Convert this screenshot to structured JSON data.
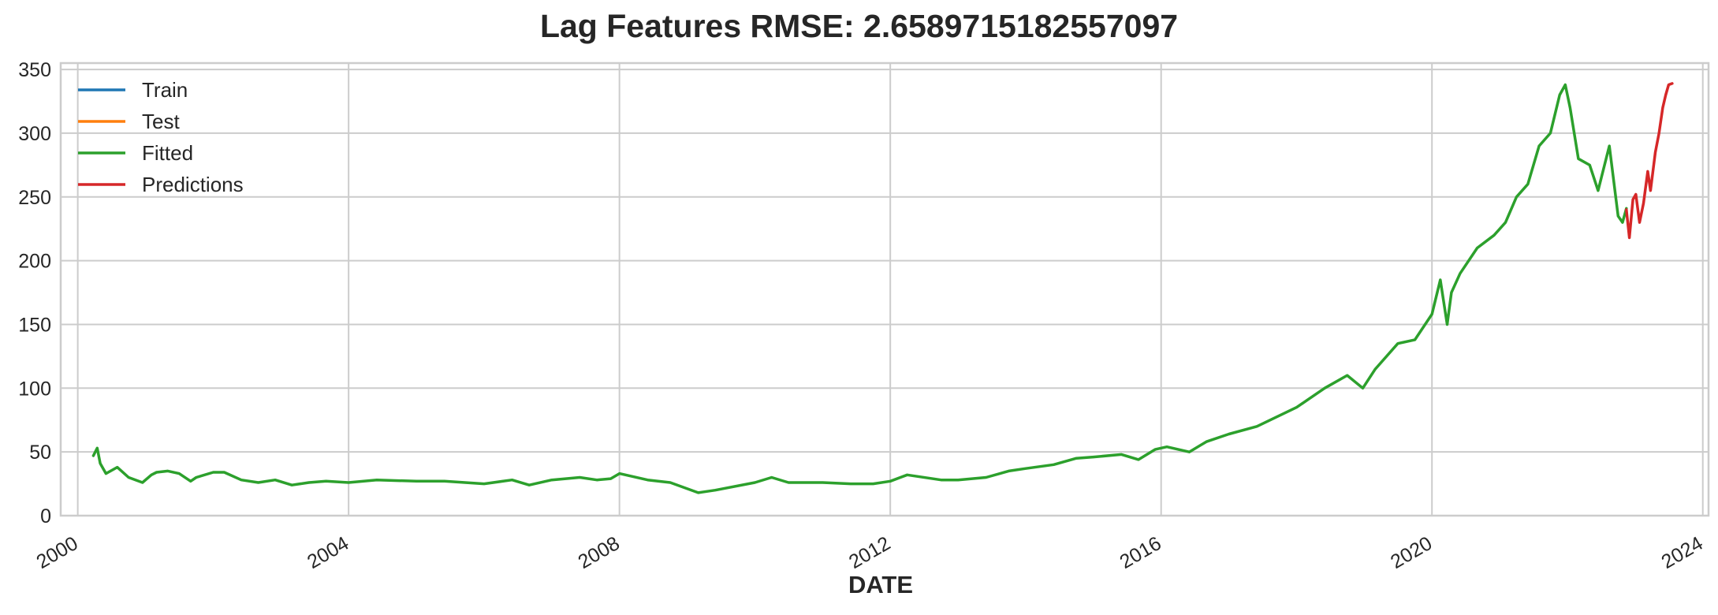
{
  "chart_data": {
    "type": "line",
    "title": "Lag Features RMSE: 2.6589715182557097",
    "xlabel": "DATE",
    "ylabel": "",
    "x_ticks": [
      "2000",
      "2004",
      "2008",
      "2012",
      "2016",
      "2020",
      "2024"
    ],
    "y_ticks": [
      "0",
      "50",
      "100",
      "150",
      "200",
      "250",
      "300",
      "350"
    ],
    "xlim": [
      "1999-10-01",
      "2024-02-01"
    ],
    "ylim": [
      0,
      355
    ],
    "grid": true,
    "legend_position": "upper-left",
    "series": [
      {
        "name": "Train",
        "color": "#1f77b4",
        "x": [],
        "y": []
      },
      {
        "name": "Test",
        "color": "#ff7f0e",
        "x": [],
        "y": []
      },
      {
        "name": "Fitted",
        "color": "#2ca02c",
        "x": [
          "2000-03-25",
          "2000-04-15",
          "2000-05-01",
          "2000-06-01",
          "2000-08-01",
          "2000-10-01",
          "2000-12-15",
          "2001-02-01",
          "2001-03-01",
          "2001-05-01",
          "2001-07-01",
          "2001-09-01",
          "2001-10-01",
          "2002-01-01",
          "2002-03-01",
          "2002-06-01",
          "2002-09-01",
          "2002-12-01",
          "2003-03-01",
          "2003-06-01",
          "2003-09-01",
          "2004-01-01",
          "2004-06-01",
          "2005-01-01",
          "2005-06-01",
          "2006-01-01",
          "2006-06-01",
          "2006-09-01",
          "2007-01-01",
          "2007-06-01",
          "2007-09-01",
          "2007-11-15",
          "2008-01-01",
          "2008-06-01",
          "2008-10-01",
          "2009-03-01",
          "2009-06-01",
          "2010-01-01",
          "2010-04-01",
          "2010-07-01",
          "2011-01-01",
          "2011-06-01",
          "2011-10-01",
          "2012-01-01",
          "2012-04-01",
          "2012-10-01",
          "2013-01-01",
          "2013-06-01",
          "2013-10-01",
          "2014-01-01",
          "2014-06-01",
          "2014-10-01",
          "2015-01-01",
          "2015-06-01",
          "2015-09-01",
          "2015-12-01",
          "2016-02-01",
          "2016-06-01",
          "2016-09-01",
          "2017-01-01",
          "2017-06-01",
          "2018-01-01",
          "2018-06-01",
          "2018-10-01",
          "2018-12-24",
          "2019-03-01",
          "2019-07-01",
          "2019-10-01",
          "2020-01-01",
          "2020-02-15",
          "2020-03-23",
          "2020-04-15",
          "2020-06-01",
          "2020-09-01",
          "2020-12-01",
          "2021-02-01",
          "2021-04-01",
          "2021-06-01",
          "2021-08-01",
          "2021-10-01",
          "2021-11-20",
          "2021-12-20",
          "2022-01-15",
          "2022-03-01",
          "2022-05-01",
          "2022-06-15",
          "2022-08-15",
          "2022-10-01",
          "2022-10-25",
          "2022-11-15"
        ],
        "y": [
          47,
          53,
          41,
          33,
          38,
          30,
          26,
          32,
          34,
          35,
          33,
          27,
          30,
          34,
          34,
          28,
          26,
          28,
          24,
          26,
          27,
          26,
          28,
          27,
          27,
          25,
          28,
          24,
          28,
          30,
          28,
          29,
          33,
          28,
          26,
          18,
          20,
          26,
          30,
          26,
          26,
          25,
          25,
          27,
          32,
          28,
          28,
          30,
          35,
          37,
          40,
          45,
          46,
          48,
          44,
          52,
          54,
          50,
          58,
          64,
          70,
          85,
          100,
          110,
          100,
          115,
          135,
          138,
          158,
          185,
          150,
          175,
          190,
          210,
          220,
          230,
          250,
          260,
          290,
          300,
          330,
          338,
          320,
          280,
          275,
          255,
          290,
          235,
          230,
          241
        ]
      },
      {
        "name": "Predictions",
        "color": "#d62728",
        "x": [
          "2022-11-15",
          "2022-12-01",
          "2022-12-20",
          "2023-01-05",
          "2023-01-25",
          "2023-02-15",
          "2023-03-10",
          "2023-03-25",
          "2023-04-20",
          "2023-05-10",
          "2023-05-30",
          "2023-06-15",
          "2023-07-01",
          "2023-07-20"
        ],
        "y": [
          240,
          218,
          248,
          252,
          230,
          245,
          270,
          255,
          285,
          300,
          320,
          330,
          338,
          339
        ]
      }
    ]
  }
}
